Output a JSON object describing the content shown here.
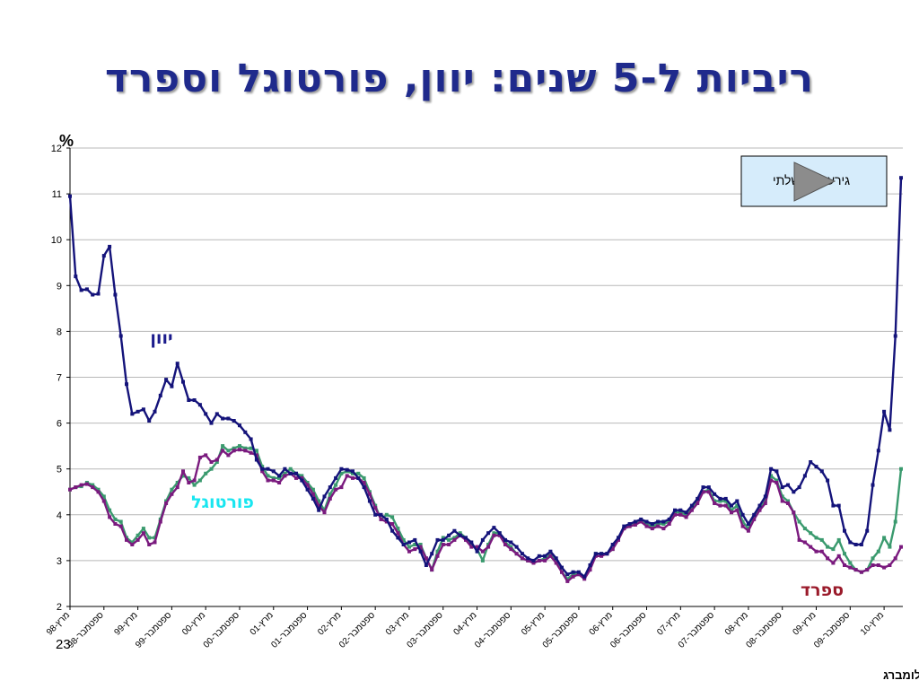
{
  "slide": {
    "title": "ריביות ל-5 שנים: יוון, פורטוגל וספרד",
    "page_number": "23",
    "source": "מקור: בלומברג"
  },
  "chart_data": {
    "type": "line",
    "ylabel": "%",
    "ylim": [
      2,
      12
    ],
    "y_ticks": [
      2,
      3,
      4,
      5,
      6,
      7,
      8,
      9,
      10,
      11,
      12
    ],
    "grid": true,
    "x_tick_labels": [
      "מרץ-98",
      "ספטמבר-98",
      "מרץ-99",
      "ספטמבר-99",
      "מרץ-00",
      "ספטמבר-00",
      "מרץ-01",
      "ספטמבר-01",
      "מרץ-02",
      "ספטמבר-02",
      "מרץ-03",
      "ספטמבר-03",
      "מרץ-04",
      "ספטמבר-04",
      "מרץ-05",
      "ספטמבר-05",
      "מרץ-06",
      "ספטמבר-06",
      "מרץ-07",
      "ספטמבר-07",
      "מרץ-08",
      "ספטמבר-08",
      "מרץ-09",
      "ספטמבר-09",
      "מרץ-10"
    ],
    "x_start_month": "1998-03",
    "annotation": "גירעון ממשלתי",
    "series": [
      {
        "name": "יוון",
        "color": "#14137a",
        "values": [
          10.95,
          9.2,
          8.9,
          8.92,
          8.8,
          8.82,
          9.65,
          9.85,
          8.8,
          7.9,
          6.85,
          6.2,
          6.25,
          6.3,
          6.05,
          6.25,
          6.6,
          6.95,
          6.8,
          7.3,
          6.9,
          6.5,
          6.5,
          6.4,
          6.2,
          6.0,
          6.2,
          6.1,
          6.1,
          6.05,
          5.95,
          5.8,
          5.65,
          5.2,
          5.0,
          5.0,
          4.95,
          4.85,
          5.0,
          4.9,
          4.9,
          4.75,
          4.55,
          4.35,
          4.1,
          4.4,
          4.6,
          4.8,
          5.0,
          4.98,
          4.95,
          4.8,
          4.6,
          4.3,
          4.0,
          4.0,
          3.9,
          3.65,
          3.5,
          3.35,
          3.4,
          3.45,
          3.2,
          2.9,
          3.15,
          3.45,
          3.45,
          3.55,
          3.65,
          3.55,
          3.5,
          3.4,
          3.2,
          3.45,
          3.6,
          3.72,
          3.6,
          3.45,
          3.4,
          3.3,
          3.15,
          3.05,
          3.0,
          3.1,
          3.1,
          3.2,
          3.05,
          2.85,
          2.7,
          2.75,
          2.75,
          2.65,
          2.9,
          3.15,
          3.15,
          3.15,
          3.35,
          3.5,
          3.75,
          3.8,
          3.85,
          3.9,
          3.85,
          3.8,
          3.85,
          3.85,
          3.9,
          4.1,
          4.1,
          4.05,
          4.2,
          4.35,
          4.6,
          4.6,
          4.45,
          4.35,
          4.35,
          4.2,
          4.3,
          4.0,
          3.8,
          4.0,
          4.2,
          4.4,
          5.0,
          4.95,
          4.6,
          4.65,
          4.5,
          4.6,
          4.85,
          5.15,
          5.05,
          4.95,
          4.75,
          4.2,
          4.2,
          3.65,
          3.4,
          3.35,
          3.35,
          3.65,
          4.65,
          5.4,
          6.25,
          5.85,
          7.9,
          11.35
        ]
      },
      {
        "name": "פורטוגל",
        "color": "#3a9a6e",
        "values": [
          4.55,
          4.6,
          4.62,
          4.7,
          4.65,
          4.55,
          4.4,
          4.1,
          3.9,
          3.85,
          3.5,
          3.4,
          3.55,
          3.7,
          3.5,
          3.5,
          3.9,
          4.3,
          4.55,
          4.7,
          4.85,
          4.8,
          4.65,
          4.75,
          4.9,
          5.0,
          5.15,
          5.5,
          5.4,
          5.45,
          5.5,
          5.45,
          5.45,
          5.4,
          5.05,
          4.85,
          4.8,
          4.8,
          4.9,
          5.0,
          4.9,
          4.85,
          4.7,
          4.55,
          4.3,
          4.1,
          4.45,
          4.65,
          4.9,
          4.95,
          4.9,
          4.9,
          4.8,
          4.5,
          4.2,
          3.9,
          4.0,
          3.95,
          3.7,
          3.45,
          3.3,
          3.35,
          3.35,
          3.05,
          2.8,
          3.2,
          3.5,
          3.45,
          3.5,
          3.6,
          3.5,
          3.35,
          3.25,
          3.0,
          3.35,
          3.6,
          3.6,
          3.4,
          3.3,
          3.15,
          3.05,
          3.0,
          2.95,
          3.0,
          3.05,
          3.15,
          3.0,
          2.75,
          2.6,
          2.7,
          2.7,
          2.65,
          2.85,
          3.15,
          3.15,
          3.15,
          3.25,
          3.5,
          3.7,
          3.75,
          3.8,
          3.85,
          3.8,
          3.75,
          3.8,
          3.8,
          3.85,
          4.05,
          4.05,
          4.0,
          4.15,
          4.3,
          4.5,
          4.55,
          4.3,
          4.3,
          4.3,
          4.1,
          4.2,
          3.85,
          3.7,
          3.95,
          4.15,
          4.3,
          4.85,
          4.75,
          4.4,
          4.3,
          4.05,
          3.85,
          3.7,
          3.6,
          3.5,
          3.45,
          3.3,
          3.25,
          3.45,
          3.15,
          2.95,
          2.8,
          2.75,
          2.8,
          3.05,
          3.2,
          3.5,
          3.3,
          3.85,
          5.0
        ]
      },
      {
        "name": "ספרד",
        "color": "#7a1a7e",
        "values": [
          4.55,
          4.6,
          4.65,
          4.67,
          4.6,
          4.5,
          4.3,
          3.95,
          3.8,
          3.75,
          3.45,
          3.35,
          3.45,
          3.6,
          3.35,
          3.4,
          3.85,
          4.25,
          4.45,
          4.6,
          4.95,
          4.7,
          4.75,
          5.25,
          5.3,
          5.15,
          5.2,
          5.4,
          5.3,
          5.4,
          5.42,
          5.4,
          5.35,
          5.3,
          4.95,
          4.75,
          4.75,
          4.7,
          4.85,
          4.9,
          4.8,
          4.8,
          4.65,
          4.45,
          4.2,
          4.05,
          4.35,
          4.55,
          4.6,
          4.85,
          4.8,
          4.8,
          4.7,
          4.45,
          4.15,
          3.9,
          3.85,
          3.8,
          3.6,
          3.35,
          3.2,
          3.25,
          3.3,
          3.05,
          2.8,
          3.1,
          3.35,
          3.35,
          3.45,
          3.55,
          3.45,
          3.3,
          3.3,
          3.2,
          3.3,
          3.55,
          3.55,
          3.35,
          3.25,
          3.15,
          3.05,
          3.0,
          2.95,
          3.0,
          3.0,
          3.1,
          2.95,
          2.75,
          2.55,
          2.65,
          2.7,
          2.6,
          2.8,
          3.1,
          3.1,
          3.15,
          3.25,
          3.45,
          3.7,
          3.75,
          3.78,
          3.85,
          3.75,
          3.7,
          3.75,
          3.7,
          3.8,
          4.0,
          4.0,
          3.95,
          4.1,
          4.25,
          4.5,
          4.5,
          4.25,
          4.2,
          4.2,
          4.05,
          4.1,
          3.75,
          3.65,
          3.9,
          4.1,
          4.25,
          4.75,
          4.7,
          4.3,
          4.25,
          4.05,
          3.45,
          3.4,
          3.3,
          3.2,
          3.2,
          3.05,
          2.95,
          3.1,
          2.9,
          2.85,
          2.8,
          2.75,
          2.8,
          2.9,
          2.9,
          2.85,
          2.9,
          3.05,
          3.3
        ]
      }
    ],
    "series_labels": {
      "greece": "יוון",
      "portugal": "פורטוגל",
      "spain": "ספרד"
    },
    "series_label_colors": {
      "greece": "#1b1b8c",
      "portugal": "#19e6f0",
      "spain": "#9a1a2a"
    }
  }
}
